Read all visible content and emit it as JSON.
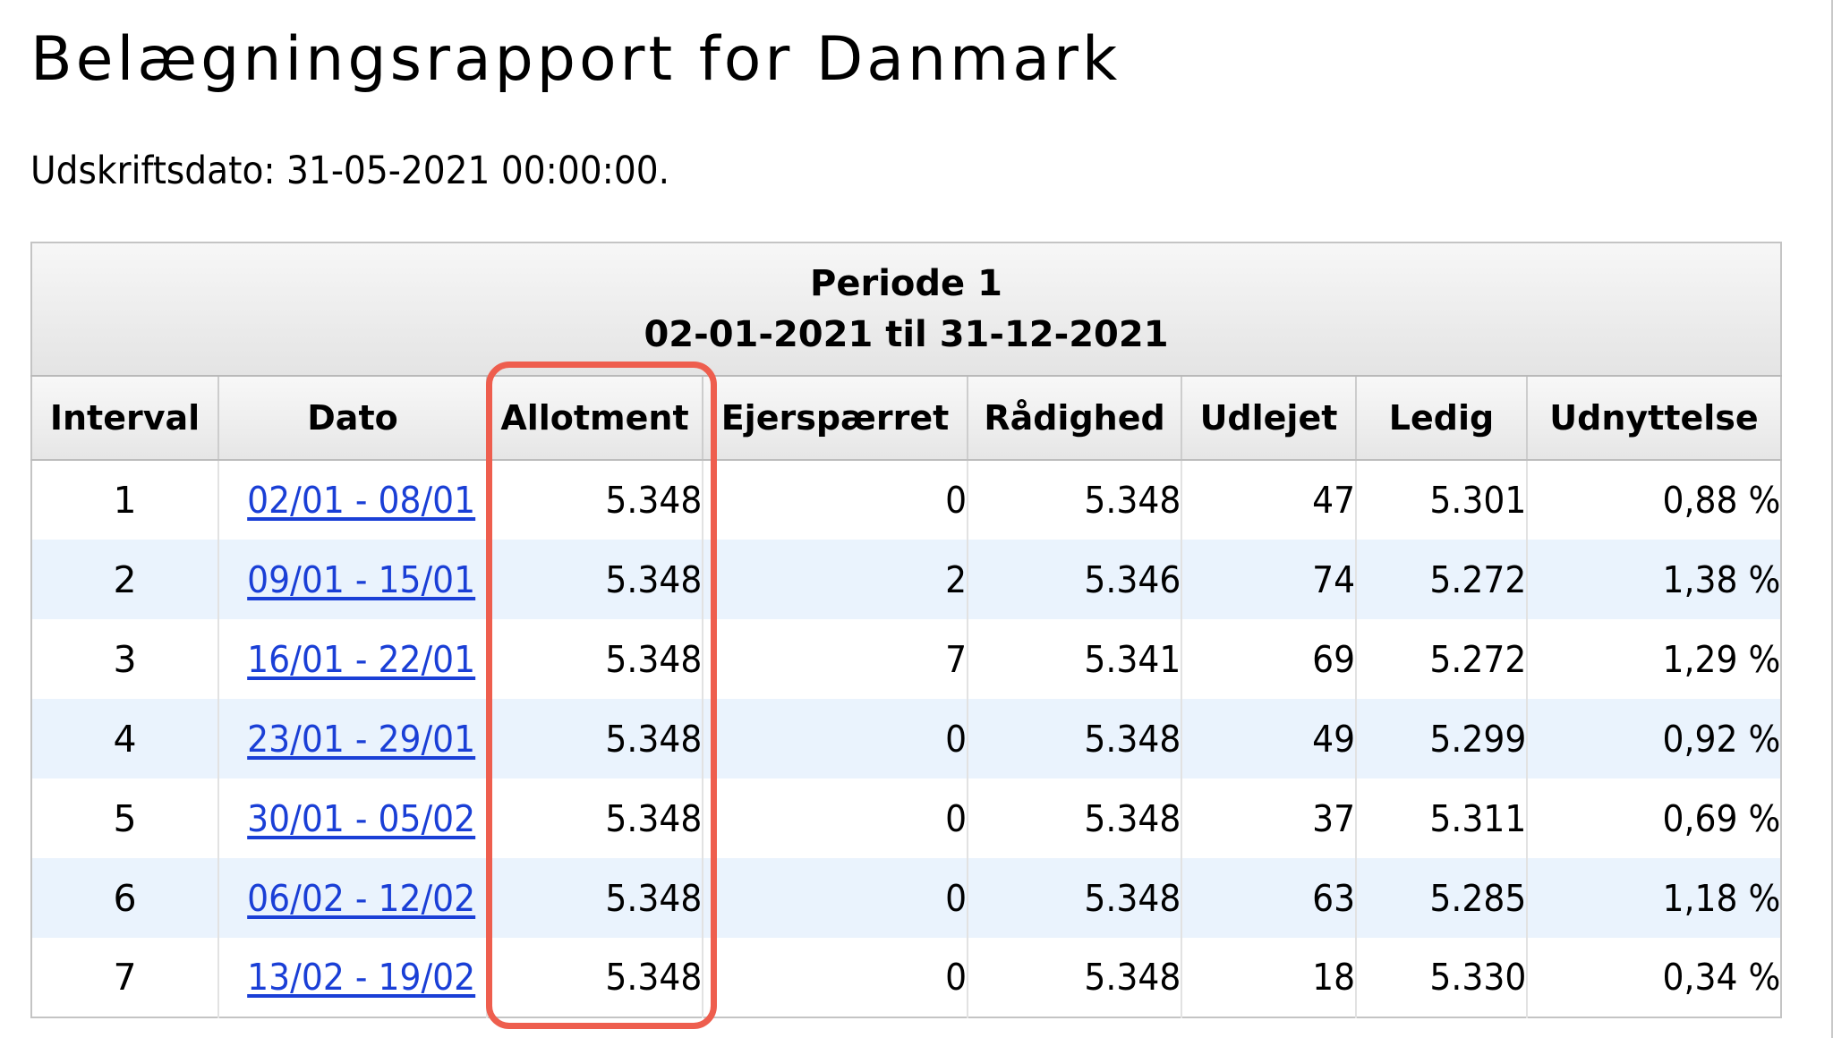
{
  "page": {
    "title": "Belægningsrapport for Danmark",
    "print_date": "Udskriftsdato: 31-05-2021 00:00:00."
  },
  "table": {
    "period": {
      "label": "Periode 1",
      "range": "02-01-2021 til 31-12-2021"
    },
    "columns": [
      "Interval",
      "Dato",
      "Allotment",
      "Ejerspærret",
      "Rådighed",
      "Udlejet",
      "Ledig",
      "Udnyttelse"
    ],
    "rows": [
      {
        "interval": "1",
        "dato": "02/01 - 08/01",
        "allotment": "5.348",
        "ejerspaerret": "0",
        "raadighed": "5.348",
        "udlejet": "47",
        "ledig": "5.301",
        "udnyttelse": "0,88 %"
      },
      {
        "interval": "2",
        "dato": "09/01 - 15/01",
        "allotment": "5.348",
        "ejerspaerret": "2",
        "raadighed": "5.346",
        "udlejet": "74",
        "ledig": "5.272",
        "udnyttelse": "1,38 %"
      },
      {
        "interval": "3",
        "dato": "16/01 - 22/01",
        "allotment": "5.348",
        "ejerspaerret": "7",
        "raadighed": "5.341",
        "udlejet": "69",
        "ledig": "5.272",
        "udnyttelse": "1,29 %"
      },
      {
        "interval": "4",
        "dato": "23/01 - 29/01",
        "allotment": "5.348",
        "ejerspaerret": "0",
        "raadighed": "5.348",
        "udlejet": "49",
        "ledig": "5.299",
        "udnyttelse": "0,92 %"
      },
      {
        "interval": "5",
        "dato": "30/01 - 05/02",
        "allotment": "5.348",
        "ejerspaerret": "0",
        "raadighed": "5.348",
        "udlejet": "37",
        "ledig": "5.311",
        "udnyttelse": "0,69 %"
      },
      {
        "interval": "6",
        "dato": "06/02 - 12/02",
        "allotment": "5.348",
        "ejerspaerret": "0",
        "raadighed": "5.348",
        "udlejet": "63",
        "ledig": "5.285",
        "udnyttelse": "1,18 %"
      },
      {
        "interval": "7",
        "dato": "13/02 - 19/02",
        "allotment": "5.348",
        "ejerspaerret": "0",
        "raadighed": "5.348",
        "udlejet": "18",
        "ledig": "5.330",
        "udnyttelse": "0,34 %"
      }
    ]
  },
  "colors": {
    "link": "#1a3fd6",
    "row_stripe": "#eaf3fd",
    "highlight": "#ee5e4e"
  }
}
